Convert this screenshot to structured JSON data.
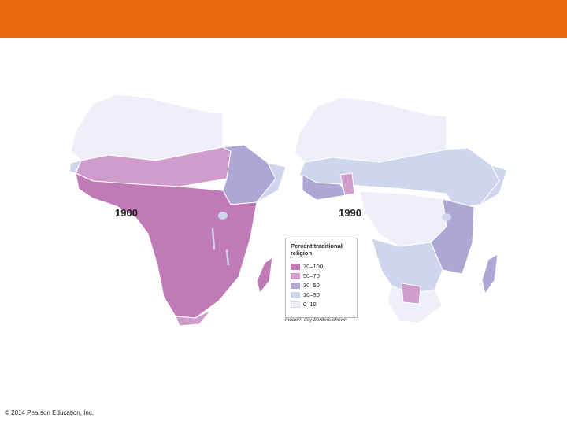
{
  "header": {
    "color": "#e8680a"
  },
  "maps": [
    {
      "label": "1900"
    },
    {
      "label": "1990"
    }
  ],
  "legend": {
    "title": "Percent traditional religion",
    "items": [
      {
        "label": "70–100",
        "color": "#c07ab8"
      },
      {
        "label": "50–70",
        "color": "#d09ccc"
      },
      {
        "label": "30–50",
        "color": "#aea6d4"
      },
      {
        "label": "10–30",
        "color": "#cdd6ec"
      },
      {
        "label": "0–10",
        "color": "#eeeff8"
      }
    ]
  },
  "caption": "modern day borders shown",
  "footer": {
    "copyright": "© 2014 Pearson Education, Inc."
  }
}
